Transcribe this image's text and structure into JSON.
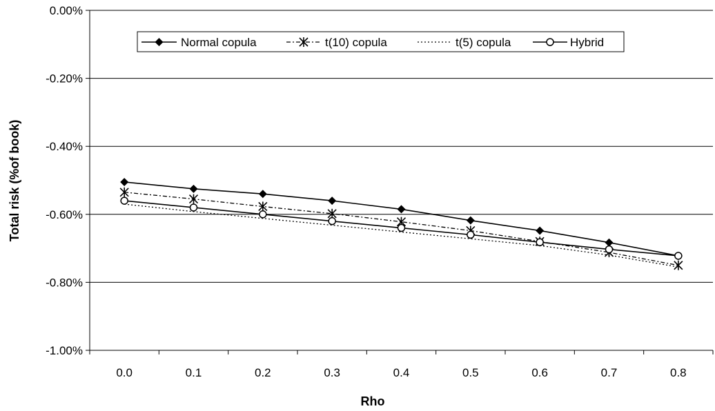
{
  "chart_data": {
    "type": "line",
    "title": "",
    "xlabel": "Rho",
    "ylabel": "Total risk (%of book)",
    "x": [
      0.0,
      0.1,
      0.2,
      0.3,
      0.4,
      0.5,
      0.6,
      0.7,
      0.8
    ],
    "x_tick_labels": [
      "0.0",
      "0.1",
      "0.2",
      "0.3",
      "0.4",
      "0.5",
      "0.6",
      "0.7",
      "0.8"
    ],
    "ylim": [
      -1.0,
      0.0
    ],
    "y_ticks": [
      0.0,
      -0.2,
      -0.4,
      -0.6,
      -0.8,
      -1.0
    ],
    "y_tick_labels": [
      "0.00%",
      "-0.20%",
      "-0.40%",
      "-0.60%",
      "-0.80%",
      "-1.00%"
    ],
    "grid": "horizontal",
    "legend_position": "top",
    "series": [
      {
        "name": "Normal copula",
        "marker": "diamond",
        "line": "solid",
        "values": [
          -0.505,
          -0.525,
          -0.54,
          -0.56,
          -0.585,
          -0.618,
          -0.648,
          -0.683,
          -0.722
        ]
      },
      {
        "name": "t(10) copula",
        "marker": "asterisk",
        "line": "dash-dot",
        "values": [
          -0.535,
          -0.555,
          -0.577,
          -0.598,
          -0.622,
          -0.648,
          -0.68,
          -0.712,
          -0.75
        ]
      },
      {
        "name": "t(5) copula",
        "marker": "none",
        "line": "dotted",
        "values": [
          -0.57,
          -0.592,
          -0.612,
          -0.632,
          -0.652,
          -0.672,
          -0.692,
          -0.72,
          -0.755
        ]
      },
      {
        "name": "Hybrid",
        "marker": "circle",
        "line": "solid",
        "values": [
          -0.56,
          -0.58,
          -0.6,
          -0.62,
          -0.64,
          -0.66,
          -0.682,
          -0.703,
          -0.722
        ]
      }
    ]
  }
}
